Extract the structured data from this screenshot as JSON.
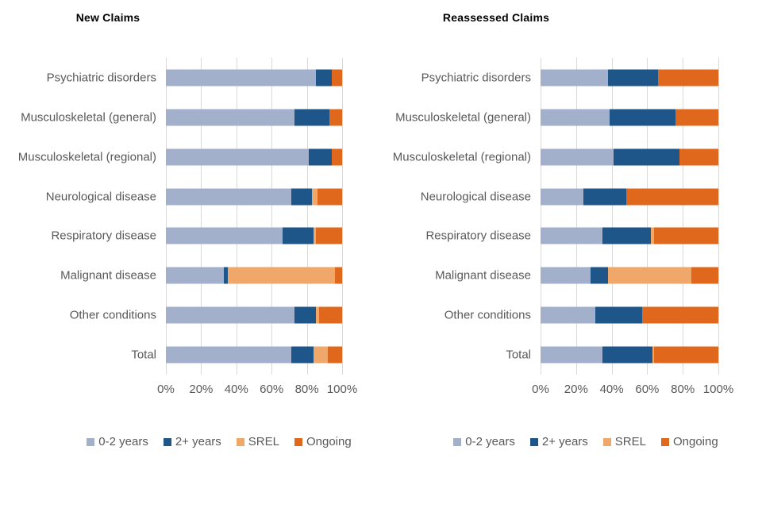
{
  "page": {
    "background": "#ffffff"
  },
  "colors": {
    "grid": "#d9d9d9",
    "label_text": "#595959",
    "title_text": "#000000"
  },
  "chart_data": [
    {
      "type": "bar",
      "orientation": "horizontal",
      "stacked": true,
      "percent_stacked": true,
      "title": "New Claims",
      "categories": [
        "Psychiatric disorders",
        "Musculoskeletal (general)",
        "Musculoskeletal (regional)",
        "Neurological disease",
        "Respiratory disease",
        "Malignant disease",
        "Other conditions",
        "Total"
      ],
      "series": [
        {
          "name": "0-2 years",
          "color": "#a3b0cc",
          "values": [
            85,
            73,
            81,
            71,
            66,
            33,
            73,
            71
          ]
        },
        {
          "name": "2+ years",
          "color": "#1f5689",
          "values": [
            9,
            20,
            13,
            12,
            18,
            2,
            12,
            13
          ]
        },
        {
          "name": "SREL",
          "color": "#f0a76a",
          "values": [
            0,
            0,
            0,
            3,
            1,
            61,
            2,
            8
          ]
        },
        {
          "name": "Ongoing",
          "color": "#e0681c",
          "values": [
            6,
            7,
            6,
            14,
            15,
            4,
            13,
            8
          ]
        }
      ],
      "x_axis": {
        "ticks": [
          "0%",
          "20%",
          "40%",
          "60%",
          "80%",
          "100%"
        ],
        "range": [
          0,
          100
        ],
        "grid": true
      },
      "legend": [
        "0-2 years",
        "2+ years",
        "SREL",
        "Ongoing"
      ],
      "legend_position": "bottom"
    },
    {
      "type": "bar",
      "orientation": "horizontal",
      "stacked": true,
      "percent_stacked": true,
      "title": "Reassessed Claims",
      "categories": [
        "Psychiatric disorders",
        "Musculoskeletal (general)",
        "Musculoskeletal (regional)",
        "Neurological disease",
        "Respiratory disease",
        "Malignant disease",
        "Other conditions",
        "Total"
      ],
      "series": [
        {
          "name": "0-2 years",
          "color": "#a3b0cc",
          "values": [
            38,
            39,
            41,
            24,
            35,
            28,
            31,
            35
          ]
        },
        {
          "name": "2+ years",
          "color": "#1f5689",
          "values": [
            28,
            37,
            37,
            24,
            27,
            10,
            26,
            28
          ]
        },
        {
          "name": "SREL",
          "color": "#f0a76a",
          "values": [
            0,
            0,
            0,
            0,
            2,
            47,
            0,
            1
          ]
        },
        {
          "name": "Ongoing",
          "color": "#e0681c",
          "values": [
            34,
            24,
            22,
            52,
            36,
            15,
            43,
            36
          ]
        }
      ],
      "x_axis": {
        "ticks": [
          "0%",
          "20%",
          "40%",
          "60%",
          "80%",
          "100%"
        ],
        "range": [
          0,
          100
        ],
        "grid": true
      },
      "legend": [
        "0-2 years",
        "2+ years",
        "SREL",
        "Ongoing"
      ],
      "legend_position": "bottom"
    }
  ]
}
